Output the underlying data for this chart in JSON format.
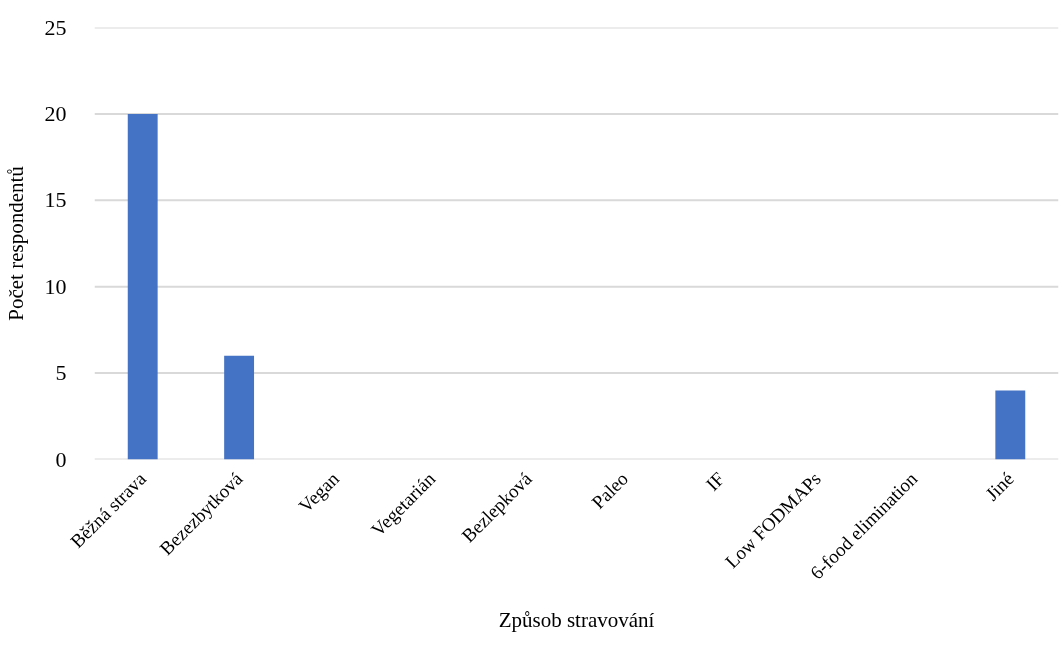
{
  "chart_data": {
    "type": "bar",
    "categories": [
      "Běžná strava",
      "Bezezbytková",
      "Vegan",
      "Vegetarián",
      "Bezlepková",
      "Paleo",
      "IF",
      "Low FODMAPs",
      "6-food elimination",
      "Jiné"
    ],
    "values": [
      20,
      6,
      0,
      0,
      0,
      0,
      0,
      0,
      0,
      4
    ],
    "color": "#4472c4",
    "xlabel": "Způsob stravování",
    "ylabel": "Počet respondentů",
    "ylim": [
      0,
      25
    ],
    "yticks": [
      0,
      5,
      10,
      15,
      20,
      25
    ],
    "grid": "y"
  }
}
